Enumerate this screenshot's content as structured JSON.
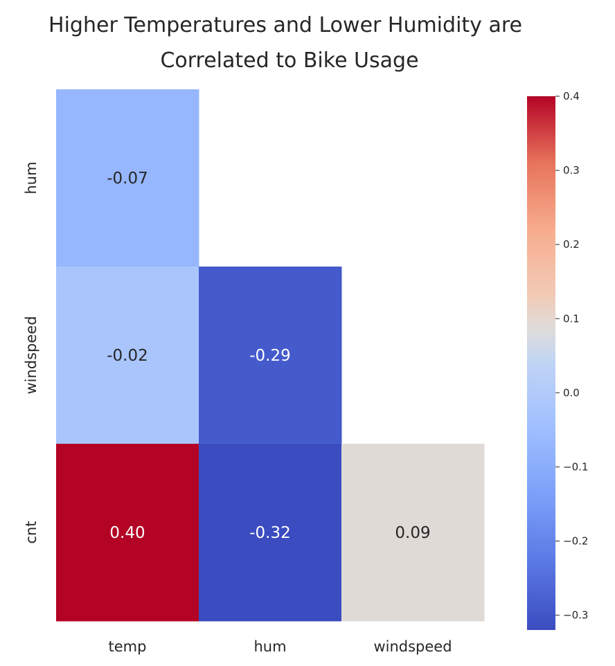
{
  "chart_data": {
    "type": "heatmap",
    "title_lines": [
      "Higher Temperatures and Lower Humidity are",
      "Correlated to Bike Usage"
    ],
    "x_categories": [
      "temp",
      "hum",
      "windspeed"
    ],
    "y_categories": [
      "hum",
      "windspeed",
      "cnt"
    ],
    "cells": [
      {
        "row": 0,
        "col": 0,
        "value": -0.07,
        "label": "-0.07"
      },
      {
        "row": 1,
        "col": 0,
        "value": -0.02,
        "label": "-0.02"
      },
      {
        "row": 1,
        "col": 1,
        "value": -0.29,
        "label": "-0.29"
      },
      {
        "row": 2,
        "col": 0,
        "value": 0.4,
        "label": "0.40"
      },
      {
        "row": 2,
        "col": 1,
        "value": -0.32,
        "label": "-0.32"
      },
      {
        "row": 2,
        "col": 2,
        "value": 0.09,
        "label": "0.09"
      }
    ],
    "masked": "upper triangle",
    "colormap": "coolwarm",
    "colorbar": {
      "min": -0.32,
      "max": 0.4,
      "ticks": [
        0.4,
        0.3,
        0.2,
        0.1,
        0.0,
        -0.1,
        -0.2,
        -0.3
      ],
      "tick_labels": [
        "0.4",
        "0.3",
        "0.2",
        "0.1",
        "0.0",
        "−0.1",
        "−0.2",
        "−0.3"
      ]
    },
    "colors": {
      "low": "#3b4cc0",
      "mid": "#dddddd",
      "high": "#b40426",
      "text_dark": "#262626",
      "text_light": "#ffffff"
    }
  }
}
